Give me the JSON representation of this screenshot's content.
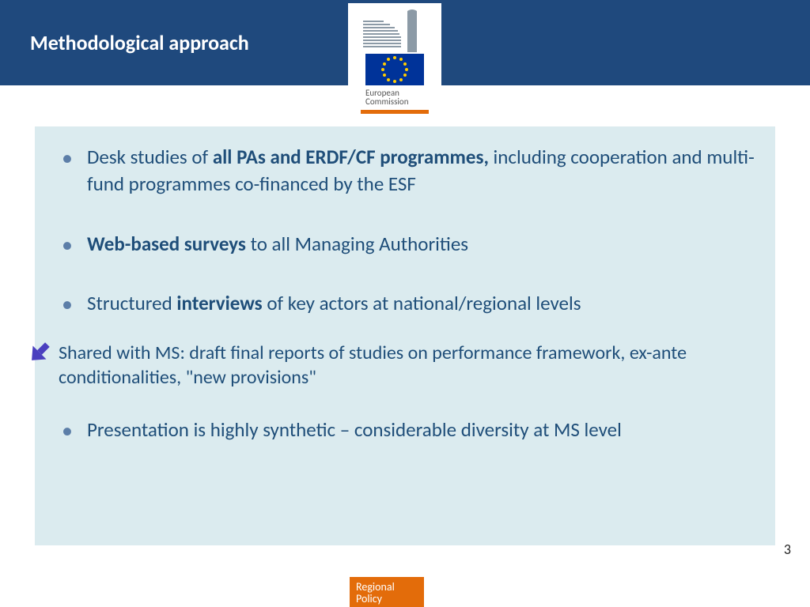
{
  "colors": {
    "header_bg": "#1f497d",
    "content_bg": "#dbebef",
    "text_blue": "#1f4e79",
    "bullet_color": "#5c7ea8",
    "accent_orange": "#e36c0a",
    "flag_bg": "#003399",
    "flag_star": "#ffcc00",
    "arrow_fill": "#4a3fbf",
    "page_bg": "#ffffff"
  },
  "typography": {
    "header_fontsize": 26,
    "bullet_fontsize": 25,
    "note_fontsize": 24,
    "pagenum_fontsize": 18,
    "footer_fontsize": 14
  },
  "header": {
    "title": "Methodological approach"
  },
  "logo": {
    "text_line1": "European",
    "text_line2": "Commission"
  },
  "bullets": [
    {
      "parts": [
        {
          "text": "Desk studies of ",
          "bold": false
        },
        {
          "text": "all PAs and ERDF/CF programmes, ",
          "bold": true
        },
        {
          "text": "including cooperation and multi-fund programmes co-financed by the ESF",
          "bold": false
        }
      ]
    },
    {
      "parts": [
        {
          "text": "Web-based surveys ",
          "bold": true
        },
        {
          "text": "to all Managing Authorities",
          "bold": false
        }
      ]
    },
    {
      "parts": [
        {
          "text": "Structured ",
          "bold": false
        },
        {
          "text": "interviews ",
          "bold": true
        },
        {
          "text": "of key actors at national/regional levels",
          "bold": false
        }
      ]
    }
  ],
  "note": "Shared with MS: draft final reports of studies on performance framework, ex-ante conditionalities, \"new provisions\"",
  "bullet_after_note": "Presentation is highly synthetic – considerable diversity at MS level",
  "page_number": "3",
  "footer": {
    "line1": "Regional",
    "line2": "Policy"
  }
}
